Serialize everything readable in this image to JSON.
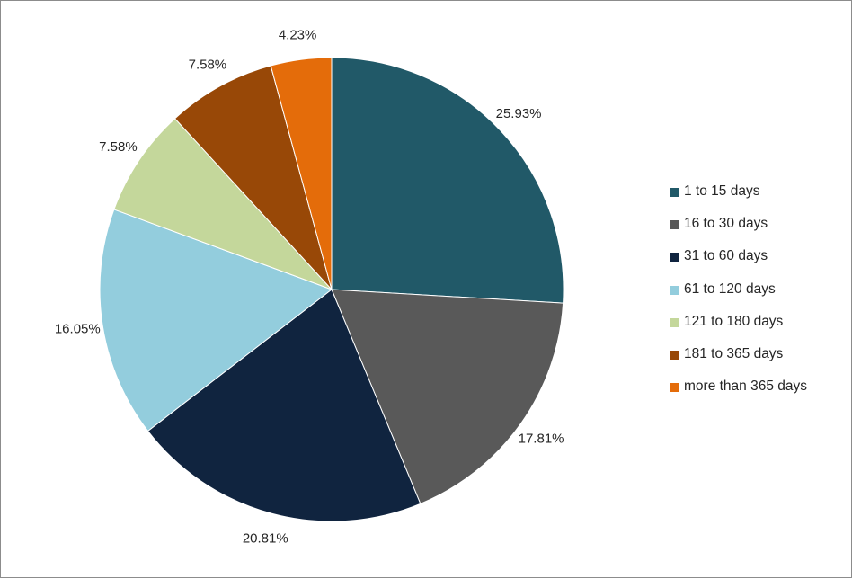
{
  "chart_data": {
    "type": "pie",
    "title": "",
    "legend_position": "right",
    "slices": [
      {
        "name": "1 to 15 days",
        "value": 25.93,
        "label": "25.93%",
        "color": "#215968"
      },
      {
        "name": "16 to 30 days",
        "value": 17.81,
        "label": "17.81%",
        "color": "#595959"
      },
      {
        "name": "31 to 60 days",
        "value": 20.81,
        "label": "20.81%",
        "color": "#10243f"
      },
      {
        "name": "61 to 120 days",
        "value": 16.05,
        "label": "16.05%",
        "color": "#93cddd"
      },
      {
        "name": "121 to 180 days",
        "value": 7.58,
        "label": "7.58%",
        "color": "#c4d79b"
      },
      {
        "name": "181 to 365 days",
        "value": 7.58,
        "label": "7.58%",
        "color": "#984807"
      },
      {
        "name": "more than 365 days",
        "value": 4.23,
        "label": "4.23%",
        "color": "#e46c0a"
      }
    ]
  }
}
